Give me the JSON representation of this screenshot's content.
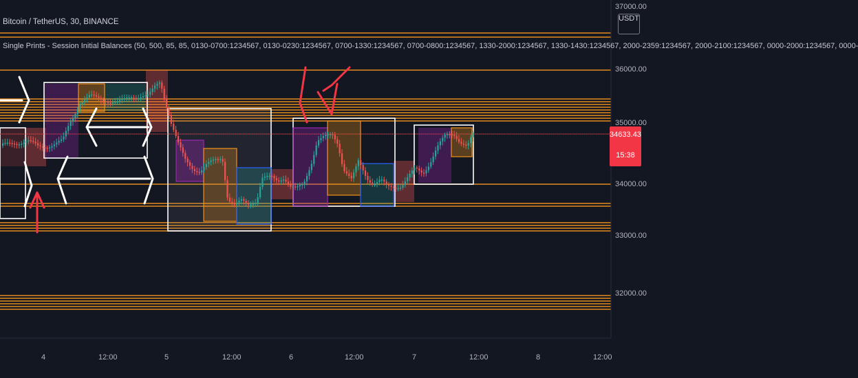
{
  "symbol_line": "Bitcoin / TetherUS, 30, BINANCE",
  "indicator_line": "Single Prints - Session Initial Balances (50, 500, 85, 85, 0130-0700:1234567, 0130-0230:1234567, 0700-1330:1234567, 0700-0800:1234567, 1330-2000:1234567, 1330-1430:1234567, 2000-2359:1234567, 2000-2100:1234567, 0000-2000:1234567, 0000-",
  "currency_badge": "USDT",
  "price_axis": {
    "labels": [
      "37000.00",
      "36000.00",
      "35000.00",
      "34000.00",
      "33000.00",
      "32000.00"
    ],
    "last_price": "34633.43",
    "countdown": "15:38"
  },
  "time_axis": {
    "labels": [
      "4",
      "12:00",
      "5",
      "12:00",
      "6",
      "12:00",
      "7",
      "12:00",
      "8",
      "12:00"
    ]
  },
  "colors": {
    "background": "#131722",
    "candle_up": "#26a69a",
    "candle_down": "#ef5350",
    "level_line": "#f0921c",
    "session_box": "#ffffff",
    "annotation": "#f23645",
    "price_tag": "#f23645"
  },
  "icons": [
    "right-arrow-drawing-icon",
    "left-arrow-drawing-icon",
    "double-arrow-drawing-icon",
    "up-arrow-annotation-icon",
    "down-arrow-annotation-icon"
  ]
}
